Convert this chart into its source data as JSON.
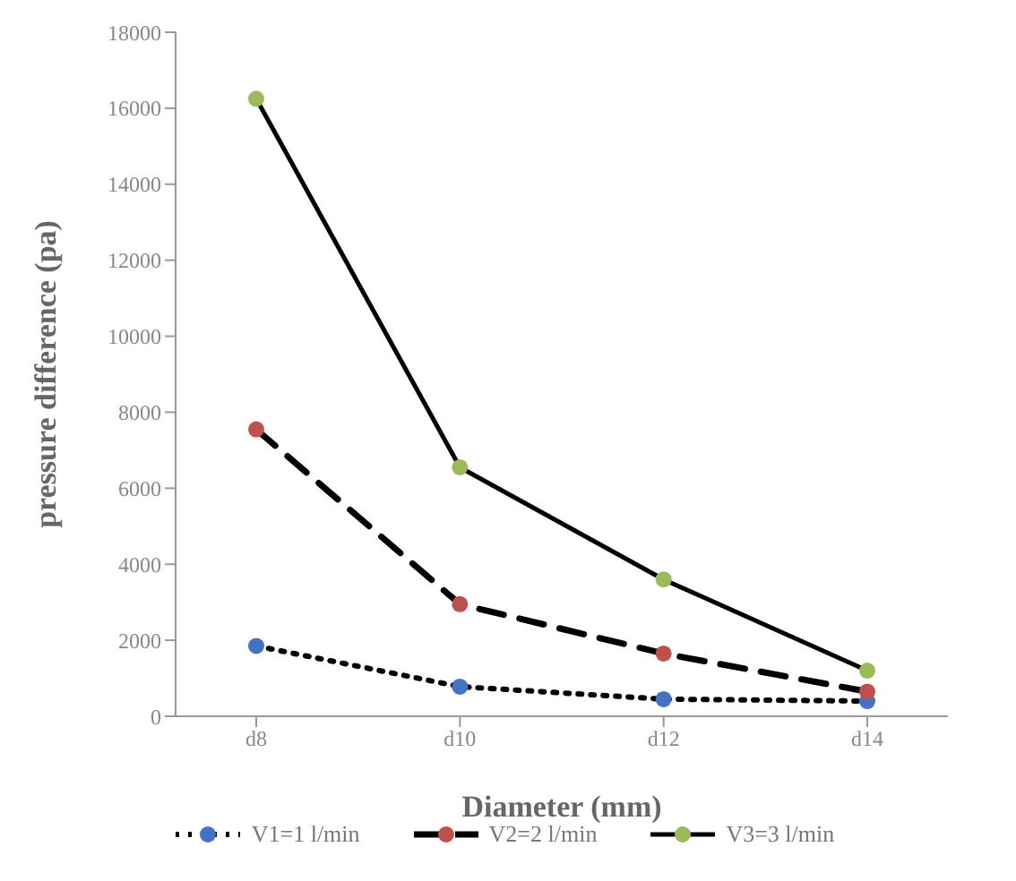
{
  "chart_data": {
    "type": "line",
    "xlabel": "Diameter (mm)",
    "ylabel": "pressure difference (pa)",
    "categories": [
      "d8",
      "d10",
      "d12",
      "d14"
    ],
    "series": [
      {
        "name": "V1=1 l/min",
        "color": "#4472c4",
        "line_style": "dotted",
        "values": [
          1850,
          780,
          450,
          400
        ]
      },
      {
        "name": "V2=2 l/min",
        "color": "#c0504d",
        "line_style": "dashed",
        "values": [
          7550,
          2950,
          1650,
          650
        ]
      },
      {
        "name": "V3=3 l/min",
        "color": "#9bbb59",
        "line_style": "solid",
        "values": [
          16250,
          6550,
          3600,
          1200
        ]
      }
    ],
    "ylim": [
      0,
      18000
    ],
    "yticks": [
      0,
      2000,
      4000,
      6000,
      8000,
      10000,
      12000,
      14000,
      16000,
      18000
    ],
    "grid": false,
    "legend": "bottom",
    "marker": "circle"
  }
}
